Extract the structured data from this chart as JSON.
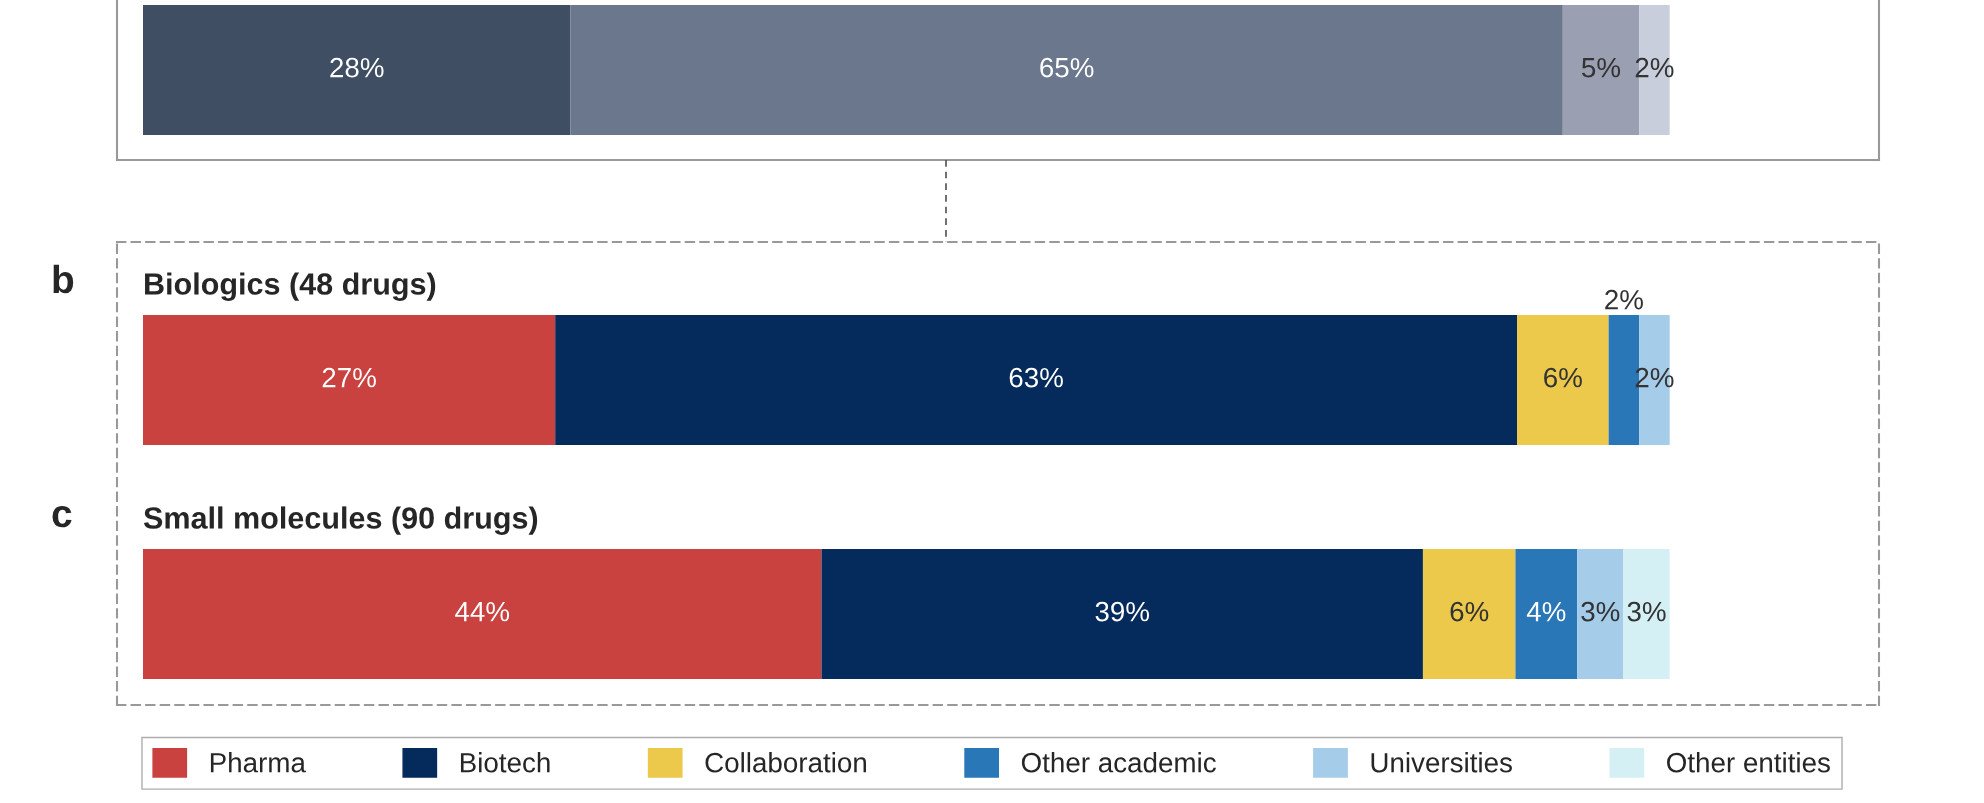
{
  "chart_data": [
    {
      "type": "bar",
      "orientation": "horizontal",
      "stacked": true,
      "categories": [
        null
      ],
      "series": [
        {
          "color": "#3f4e63",
          "values": [
            28
          ],
          "value_labels": [
            "28%"
          ]
        },
        {
          "color": "#6b778d",
          "values": [
            65
          ],
          "value_labels": [
            "65%"
          ]
        },
        {
          "color": "#9a9fb2",
          "values": [
            5
          ],
          "value_labels": [
            "5%"
          ]
        },
        {
          "color": "#c9cedd",
          "values": [
            2
          ],
          "value_labels": [
            "2%"
          ]
        }
      ]
    },
    {
      "type": "bar",
      "orientation": "horizontal",
      "stacked": true,
      "title": "Biologics (48 drugs)",
      "annotations": [
        "b"
      ],
      "categories": [
        null
      ],
      "series": [
        {
          "color": "#c9423f",
          "values": [
            27
          ],
          "value_labels": [
            "27%"
          ]
        },
        {
          "color": "#052a5c",
          "values": [
            63
          ],
          "value_labels": [
            "63%"
          ]
        },
        {
          "color": "#ecc94b",
          "values": [
            6
          ],
          "value_labels": [
            "6%"
          ]
        },
        {
          "color": "#2a77b8",
          "values": [
            2
          ],
          "value_labels": [
            "2%"
          ]
        },
        {
          "color": "#a5cce8",
          "values": [
            2
          ],
          "value_labels": [
            "2%"
          ]
        }
      ]
    },
    {
      "type": "bar",
      "orientation": "horizontal",
      "stacked": true,
      "title": "Small molecules (90 drugs)",
      "annotations": [
        "c"
      ],
      "categories": [
        null
      ],
      "legend": "bottom",
      "series": [
        {
          "name": "Pharma",
          "color": "#c9423f",
          "values": [
            44
          ],
          "value_labels": [
            "44%"
          ]
        },
        {
          "name": "Biotech",
          "color": "#052a5c",
          "values": [
            39
          ],
          "value_labels": [
            "39%"
          ]
        },
        {
          "name": "Collaboration",
          "color": "#ecc94b",
          "values": [
            6
          ],
          "value_labels": [
            "6%"
          ]
        },
        {
          "name": "Other academic",
          "color": "#2a77b8",
          "values": [
            4
          ],
          "value_labels": [
            "4%"
          ]
        },
        {
          "name": "Universities",
          "color": "#a5cce8",
          "values": [
            3
          ],
          "value_labels": [
            "3%"
          ]
        },
        {
          "name": "Other entities",
          "color": "#d5f0f5",
          "values": [
            3
          ],
          "value_labels": [
            "3%"
          ]
        }
      ]
    }
  ]
}
